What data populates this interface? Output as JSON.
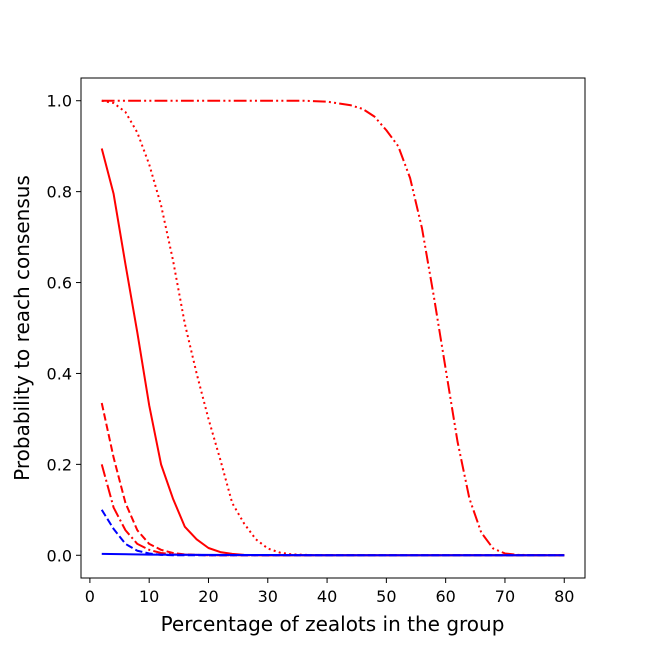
{
  "chart_data": {
    "type": "line",
    "xlabel": "Percentage of zealots in the group",
    "ylabel": "Probability to reach consensus",
    "xlim": [
      -1.5,
      83.5
    ],
    "ylim": [
      -0.05,
      1.05
    ],
    "xticks": [
      0,
      10,
      20,
      30,
      40,
      50,
      60,
      70,
      80
    ],
    "yticks": [
      0.0,
      0.2,
      0.4,
      0.6,
      0.8,
      1.0
    ],
    "xtick_labels": [
      "0",
      "10",
      "20",
      "30",
      "40",
      "50",
      "60",
      "70",
      "80"
    ],
    "ytick_labels": [
      "0.0",
      "0.2",
      "0.4",
      "0.6",
      "0.8",
      "1.0"
    ],
    "grid": false,
    "legend": "none",
    "series": [
      {
        "color": "#ff0000",
        "style": "solid",
        "x": [
          2,
          4,
          6,
          8,
          10,
          12,
          14,
          16,
          18,
          20,
          22,
          24,
          26,
          30,
          40,
          50,
          60,
          70,
          80
        ],
        "y": [
          0.895,
          0.795,
          0.64,
          0.49,
          0.33,
          0.2,
          0.125,
          0.063,
          0.035,
          0.016,
          0.007,
          0.003,
          0.001,
          0.0,
          0.0,
          0.0,
          0.0,
          0.0,
          0.0
        ]
      },
      {
        "color": "#ff0000",
        "style": "dashed",
        "x": [
          2,
          4,
          6,
          8,
          10,
          12,
          14,
          16,
          20,
          30,
          40,
          50,
          60,
          70,
          80
        ],
        "y": [
          0.335,
          0.215,
          0.115,
          0.055,
          0.025,
          0.012,
          0.005,
          0.002,
          0.0,
          0.0,
          0.0,
          0.0,
          0.0,
          0.0,
          0.0
        ]
      },
      {
        "color": "#ff0000",
        "style": "dashdot",
        "x": [
          2,
          4,
          6,
          8,
          10,
          12,
          14,
          20,
          30,
          40,
          50,
          60,
          70,
          80
        ],
        "y": [
          0.2,
          0.105,
          0.055,
          0.025,
          0.012,
          0.005,
          0.002,
          0.0,
          0.0,
          0.0,
          0.0,
          0.0,
          0.0,
          0.0
        ]
      },
      {
        "color": "#ff0000",
        "style": "dotted",
        "x": [
          2,
          4,
          6,
          8,
          10,
          12,
          14,
          16,
          18,
          20,
          22,
          24,
          26,
          28,
          30,
          32,
          34,
          36,
          40,
          50,
          60,
          70,
          80
        ],
        "y": [
          1.0,
          0.995,
          0.975,
          0.93,
          0.86,
          0.77,
          0.65,
          0.51,
          0.4,
          0.3,
          0.21,
          0.115,
          0.07,
          0.035,
          0.015,
          0.006,
          0.002,
          0.001,
          0.0,
          0.0,
          0.0,
          0.0,
          0.0
        ]
      },
      {
        "color": "#ff0000",
        "style": "dashdotdot",
        "x": [
          2,
          10,
          20,
          30,
          36,
          40,
          44,
          46,
          48,
          50,
          52,
          54,
          56,
          58,
          60,
          62,
          64,
          66,
          68,
          70,
          72,
          76,
          80
        ],
        "y": [
          1.0,
          1.0,
          1.0,
          1.0,
          1.0,
          0.998,
          0.99,
          0.982,
          0.965,
          0.935,
          0.9,
          0.83,
          0.72,
          0.57,
          0.41,
          0.25,
          0.125,
          0.05,
          0.015,
          0.004,
          0.001,
          0.0,
          0.0
        ]
      },
      {
        "color": "#0000ff",
        "style": "dashed",
        "x": [
          2,
          4,
          6,
          8,
          10,
          12,
          14,
          20,
          30,
          40,
          50,
          60,
          70,
          80
        ],
        "y": [
          0.1,
          0.058,
          0.025,
          0.01,
          0.004,
          0.001,
          0.0,
          0.0,
          0.0,
          0.0,
          0.0,
          0.0,
          0.0,
          0.0
        ]
      },
      {
        "color": "#0000ff",
        "style": "solid",
        "x": [
          2,
          10,
          20,
          30,
          40,
          50,
          60,
          70,
          80
        ],
        "y": [
          0.003,
          0.0015,
          0.001,
          0.0005,
          0.0,
          0.0,
          0.0,
          0.0,
          0.0
        ]
      }
    ]
  }
}
